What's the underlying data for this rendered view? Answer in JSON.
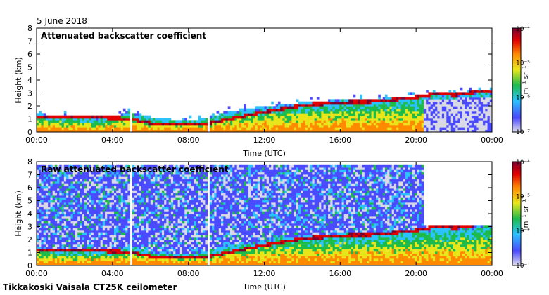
{
  "date_label": "5 June 2018",
  "footer": "Tikkakoski Vaisala CT25K ceilometer",
  "colormap": [
    "#d9d9e6",
    "#4a4aff",
    "#2ac2ff",
    "#1dbb4c",
    "#e8e61a",
    "#ff8a00",
    "#e10000",
    "#7a0030"
  ],
  "chart_data": [
    {
      "type": "heatmap",
      "title": "Attenuated backscatter coefficient",
      "xlabel": "Time (UTC)",
      "ylabel": "Height (km)",
      "xlim": [
        "00:00",
        "00:00"
      ],
      "x_ticks": [
        "00:00",
        "04:00",
        "08:00",
        "12:00",
        "16:00",
        "20:00",
        "00:00"
      ],
      "ylim": [
        0,
        8
      ],
      "y_ticks": [
        "0",
        "1",
        "2",
        "3",
        "4",
        "5",
        "6",
        "7",
        "8"
      ],
      "colorbar": {
        "label": "m⁻¹ sr⁻¹",
        "scale": "log",
        "range": [
          1e-07,
          0.0001
        ],
        "ticks": [
          "10⁻⁴",
          "10⁻⁵",
          "10⁻⁶",
          "10⁻⁷"
        ]
      },
      "layer_top_km": [
        [
          0.0,
          1.3
        ],
        [
          1.0,
          1.2
        ],
        [
          2.0,
          1.1
        ],
        [
          3.0,
          1.0
        ],
        [
          4.0,
          1.0
        ],
        [
          4.8,
          1.5
        ],
        [
          6.0,
          1.0
        ],
        [
          8.0,
          0.8
        ],
        [
          9.0,
          1.0
        ],
        [
          10.0,
          1.5
        ],
        [
          11.0,
          1.7
        ],
        [
          12.0,
          1.9
        ],
        [
          14.0,
          2.2
        ],
        [
          16.0,
          2.4
        ],
        [
          18.0,
          2.5
        ],
        [
          20.0,
          2.7
        ],
        [
          21.0,
          2.9
        ],
        [
          22.0,
          2.9
        ],
        [
          23.5,
          3.1
        ]
      ],
      "cloud_base_km": [
        [
          0.0,
          1.1
        ],
        [
          2.0,
          1.1
        ],
        [
          4.0,
          1.0
        ],
        [
          5.0,
          0.9
        ],
        [
          6.0,
          0.6
        ],
        [
          9.0,
          0.6
        ],
        [
          12.0,
          1.5
        ],
        [
          14.0,
          2.0
        ],
        [
          16.0,
          2.2
        ],
        [
          18.0,
          2.3
        ],
        [
          20.0,
          2.6
        ],
        [
          21.0,
          2.9
        ],
        [
          22.0,
          2.8
        ],
        [
          23.5,
          3.1
        ]
      ]
    },
    {
      "type": "heatmap",
      "title": "Raw attenuated backscatter coefficient",
      "xlabel": "Time (UTC)",
      "ylabel": "Height (km)",
      "xlim": [
        "00:00",
        "00:00"
      ],
      "x_ticks": [
        "00:00",
        "04:00",
        "08:00",
        "12:00",
        "16:00",
        "20:00",
        "00:00"
      ],
      "ylim": [
        0,
        8
      ],
      "y_ticks": [
        "0",
        "1",
        "2",
        "3",
        "4",
        "5",
        "6",
        "7",
        "8"
      ],
      "colorbar": {
        "label": "m⁻¹ sr⁻¹",
        "scale": "log",
        "range": [
          1e-07,
          0.0001
        ],
        "ticks": [
          "10⁻⁴",
          "10⁻⁵",
          "10⁻⁶",
          "10⁻⁷"
        ]
      },
      "layer_top_km": [
        [
          0.0,
          1.3
        ],
        [
          1.0,
          1.2
        ],
        [
          2.0,
          1.1
        ],
        [
          3.0,
          1.0
        ],
        [
          4.0,
          1.0
        ],
        [
          4.8,
          1.5
        ],
        [
          6.0,
          1.0
        ],
        [
          8.0,
          0.8
        ],
        [
          9.0,
          1.0
        ],
        [
          10.0,
          1.5
        ],
        [
          11.0,
          1.7
        ],
        [
          12.0,
          1.9
        ],
        [
          14.0,
          2.2
        ],
        [
          16.0,
          2.4
        ],
        [
          18.0,
          2.5
        ],
        [
          20.0,
          2.7
        ],
        [
          21.0,
          2.9
        ],
        [
          22.0,
          2.9
        ],
        [
          23.5,
          3.1
        ]
      ],
      "cloud_base_km": [
        [
          0.0,
          1.1
        ],
        [
          2.0,
          1.1
        ],
        [
          4.0,
          1.0
        ],
        [
          5.0,
          0.9
        ],
        [
          6.0,
          0.6
        ],
        [
          9.0,
          0.6
        ],
        [
          12.0,
          1.5
        ],
        [
          14.0,
          2.0
        ],
        [
          16.0,
          2.2
        ],
        [
          18.0,
          2.3
        ],
        [
          20.0,
          2.6
        ],
        [
          21.0,
          2.9
        ],
        [
          22.0,
          2.8
        ],
        [
          23.5,
          3.1
        ]
      ]
    }
  ]
}
